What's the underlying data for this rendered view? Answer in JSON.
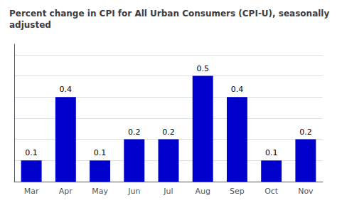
{
  "chart_data": {
    "type": "bar",
    "title": "Percent change in CPI for All Urban Consumers (CPI-U), seasonally adjusted",
    "categories": [
      "Mar",
      "Apr",
      "May",
      "Jun",
      "Jul",
      "Aug",
      "Sep",
      "Oct",
      "Nov"
    ],
    "values": [
      0.1,
      0.4,
      0.1,
      0.2,
      0.2,
      0.5,
      0.4,
      0.1,
      0.2
    ],
    "color": "#0000cc",
    "ylim": [
      0,
      0.65
    ],
    "yticks": [
      0,
      0.1,
      0.2,
      0.3,
      0.4,
      0.5,
      0.6
    ],
    "grid": true,
    "data_labels": true,
    "tick_labels": "x"
  }
}
